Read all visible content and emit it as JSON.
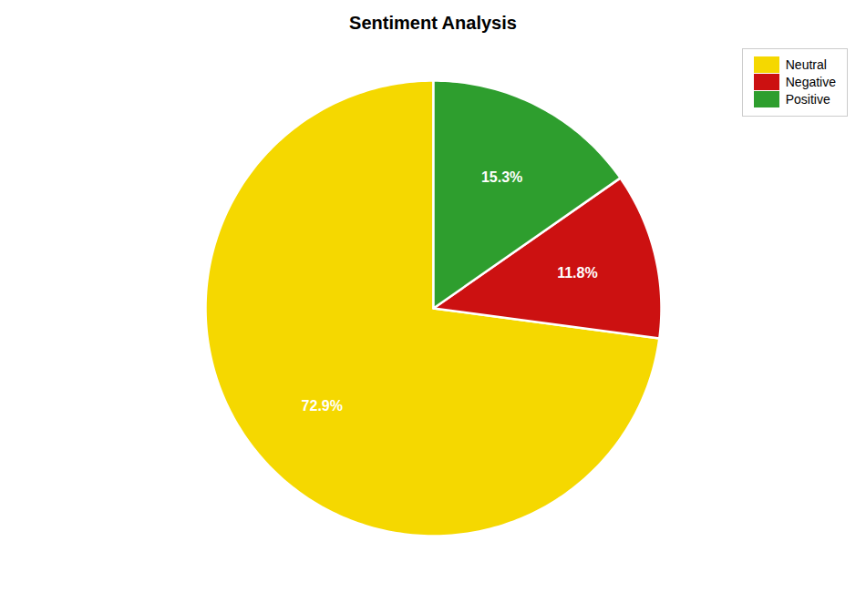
{
  "chart_data": {
    "type": "pie",
    "title": "Sentiment Analysis",
    "categories": [
      "Neutral",
      "Negative",
      "Positive"
    ],
    "values": [
      72.9,
      11.8,
      15.3
    ],
    "value_labels": [
      "72.9%",
      "11.8%",
      "15.3%"
    ],
    "colors": [
      "#f5d800",
      "#cc1111",
      "#2e9e2e"
    ],
    "data_labels": true,
    "legend": "upper right",
    "tick_labels": false
  }
}
